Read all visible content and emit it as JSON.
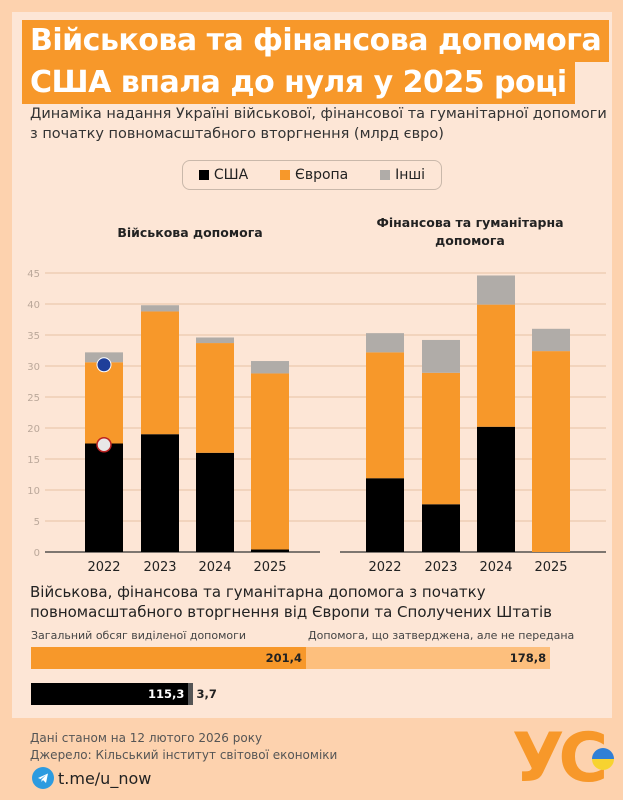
{
  "title_line1": "Військова та фінансова допомога",
  "title_line2": "США впала до нуля у 2025 році",
  "subtitle": "Динаміка надання Україні військової, фінансової та гуманітарної допомоги з початку повномасштабного вторгнення (млрд євро)",
  "colors": {
    "us": "#000000",
    "europe": "#f7982a",
    "other": "#b0aca8",
    "approved": "#fdbf7d",
    "us_other": "#555555"
  },
  "legend": [
    {
      "label": "США",
      "color": "#000000"
    },
    {
      "label": "Європа",
      "color": "#f7982a"
    },
    {
      "label": "Інші",
      "color": "#b0aca8"
    }
  ],
  "chart_data": [
    {
      "type": "bar",
      "stacked": true,
      "title": "Військова допомога",
      "categories": [
        "2022",
        "2023",
        "2024",
        "2025"
      ],
      "series": [
        {
          "name": "США",
          "values": [
            17.5,
            19.0,
            16.0,
            0.4
          ]
        },
        {
          "name": "Європа",
          "values": [
            13.1,
            19.8,
            17.7,
            28.4
          ]
        },
        {
          "name": "Інші",
          "values": [
            1.6,
            1.0,
            0.9,
            2.0
          ]
        }
      ],
      "ylim": [
        0,
        45
      ],
      "yticks": [
        "0",
        "5",
        "10",
        "15",
        "20",
        "25",
        "30",
        "35",
        "40",
        "45"
      ],
      "grid": true
    },
    {
      "type": "bar",
      "stacked": true,
      "title": "Фінансова та гуманітарна допомога",
      "categories": [
        "2022",
        "2023",
        "2024",
        "2025"
      ],
      "series": [
        {
          "name": "США",
          "values": [
            11.9,
            7.7,
            20.2,
            0
          ]
        },
        {
          "name": "Європа",
          "values": [
            20.3,
            21.2,
            19.7,
            32.4
          ]
        },
        {
          "name": "Інші",
          "values": [
            3.1,
            5.3,
            4.7,
            3.6
          ]
        }
      ],
      "ylim": [
        0,
        45
      ],
      "grid": true
    },
    {
      "type": "bar",
      "orientation": "horizontal",
      "stacked": true,
      "title": "Військова, фінансова та гуманітарна допомога з початку повномасштабного вторгнення від Європи та Сполучених Штатів",
      "segment_labels": [
        "Загальний обсяг виділеної допомоги",
        "Допомога, що затверджена, але не передана"
      ],
      "rows": [
        {
          "name": "Європа",
          "allocated": 201.4,
          "allocated_label": "201,4",
          "approved": 178.8,
          "approved_label": "178,8"
        },
        {
          "name": "США",
          "allocated": 115.3,
          "allocated_label": "115,3",
          "approved": 3.7,
          "approved_label": "3,7"
        }
      ]
    }
  ],
  "footer": {
    "date_note": "Дані станом на 12 лютого 2026 року",
    "source": "Джерело: Кільський інститут світової економіки",
    "telegram": "t.me/u_now",
    "logo": "УС"
  }
}
